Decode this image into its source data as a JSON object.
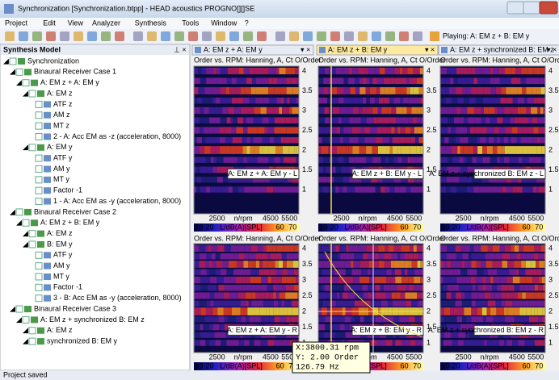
{
  "window": {
    "title": "Synchronization [Synchronization.btpp] - HEAD acoustics PROGNO[][]SE"
  },
  "menu": [
    "Project",
    "Edit",
    "View",
    "Analyzer",
    "Synthesis",
    "Tools",
    "Window",
    "?"
  ],
  "toolbar": {
    "playing": "Playing: A: EM z + B: EM y"
  },
  "panel": {
    "title": "Synthesis Model",
    "tree": [
      "Synchronization",
      "Binaural Receiver Case 1",
      "A: EM z + A: EM y",
      "A: EM z",
      "ATF z",
      "AM z",
      "MT z",
      "2 - A: Acc EM as -z (acceleration, 8000)",
      "A: EM y",
      "ATF y",
      "AM y",
      "MT y",
      "Factor -1",
      "1 - A: Acc EM as -y (acceleration, 8000)",
      "Binaural Receiver Case 2",
      "A: EM z + B: EM y",
      "A: EM z",
      "B: EM y",
      "ATF y",
      "AM y",
      "MT y",
      "Factor -1",
      "3 - B: Acc EM as -y (acceleration, 8000)",
      "Binaural Receiver Case 3",
      "A: EM z + synchronized B: EM z",
      "A: EM z",
      "synchronized B: EM y"
    ]
  },
  "tabs": [
    {
      "title": "A: EM z + A: EM y",
      "plots": [
        {
          "title": "Order vs. RPM: Hanning, A, Ct O/Order",
          "label": "A: EM z + A: EM y - L"
        },
        {
          "title": "Order vs. RPM: Hanning, A, Ct O/Order",
          "label": "A: EM z + A: EM y - R"
        }
      ]
    },
    {
      "title": "A: EM z + B: EM y",
      "plots": [
        {
          "title": "Order vs. RPM: Hanning, A, Ct O/Order",
          "label": "A: EM z + B: EM y - L"
        },
        {
          "title": "Order vs. RPM: Hanning, A, Ct O/Order",
          "label": "A: EM z + B: EM y - R"
        }
      ]
    },
    {
      "title": "A: EM z + synchronized B: EM z",
      "plots": [
        {
          "title": "Order vs. RPM: Hanning, A, Ct O/Order",
          "label": "A: EM z + synchronized B: EM z - L"
        },
        {
          "title": "Order vs. RPM: Hanning, A, Ct O/Order",
          "label": "A: EM z + synchronized B: EM z - R"
        }
      ]
    }
  ],
  "axes": {
    "yticks": [
      "4",
      "3.5",
      "3",
      "2.5",
      "2",
      "1.5",
      "1"
    ],
    "xticks": [
      "2500",
      "n/rpm",
      "4500",
      "5500"
    ],
    "colorbar": [
      "10",
      "20",
      "L/dB(A)[SPL]",
      "60",
      "70"
    ]
  },
  "tooltip": [
    "X:3800.31 rpm",
    "Y:   2.00 Order",
    "  126.79 Hz"
  ],
  "status": "Project saved"
}
